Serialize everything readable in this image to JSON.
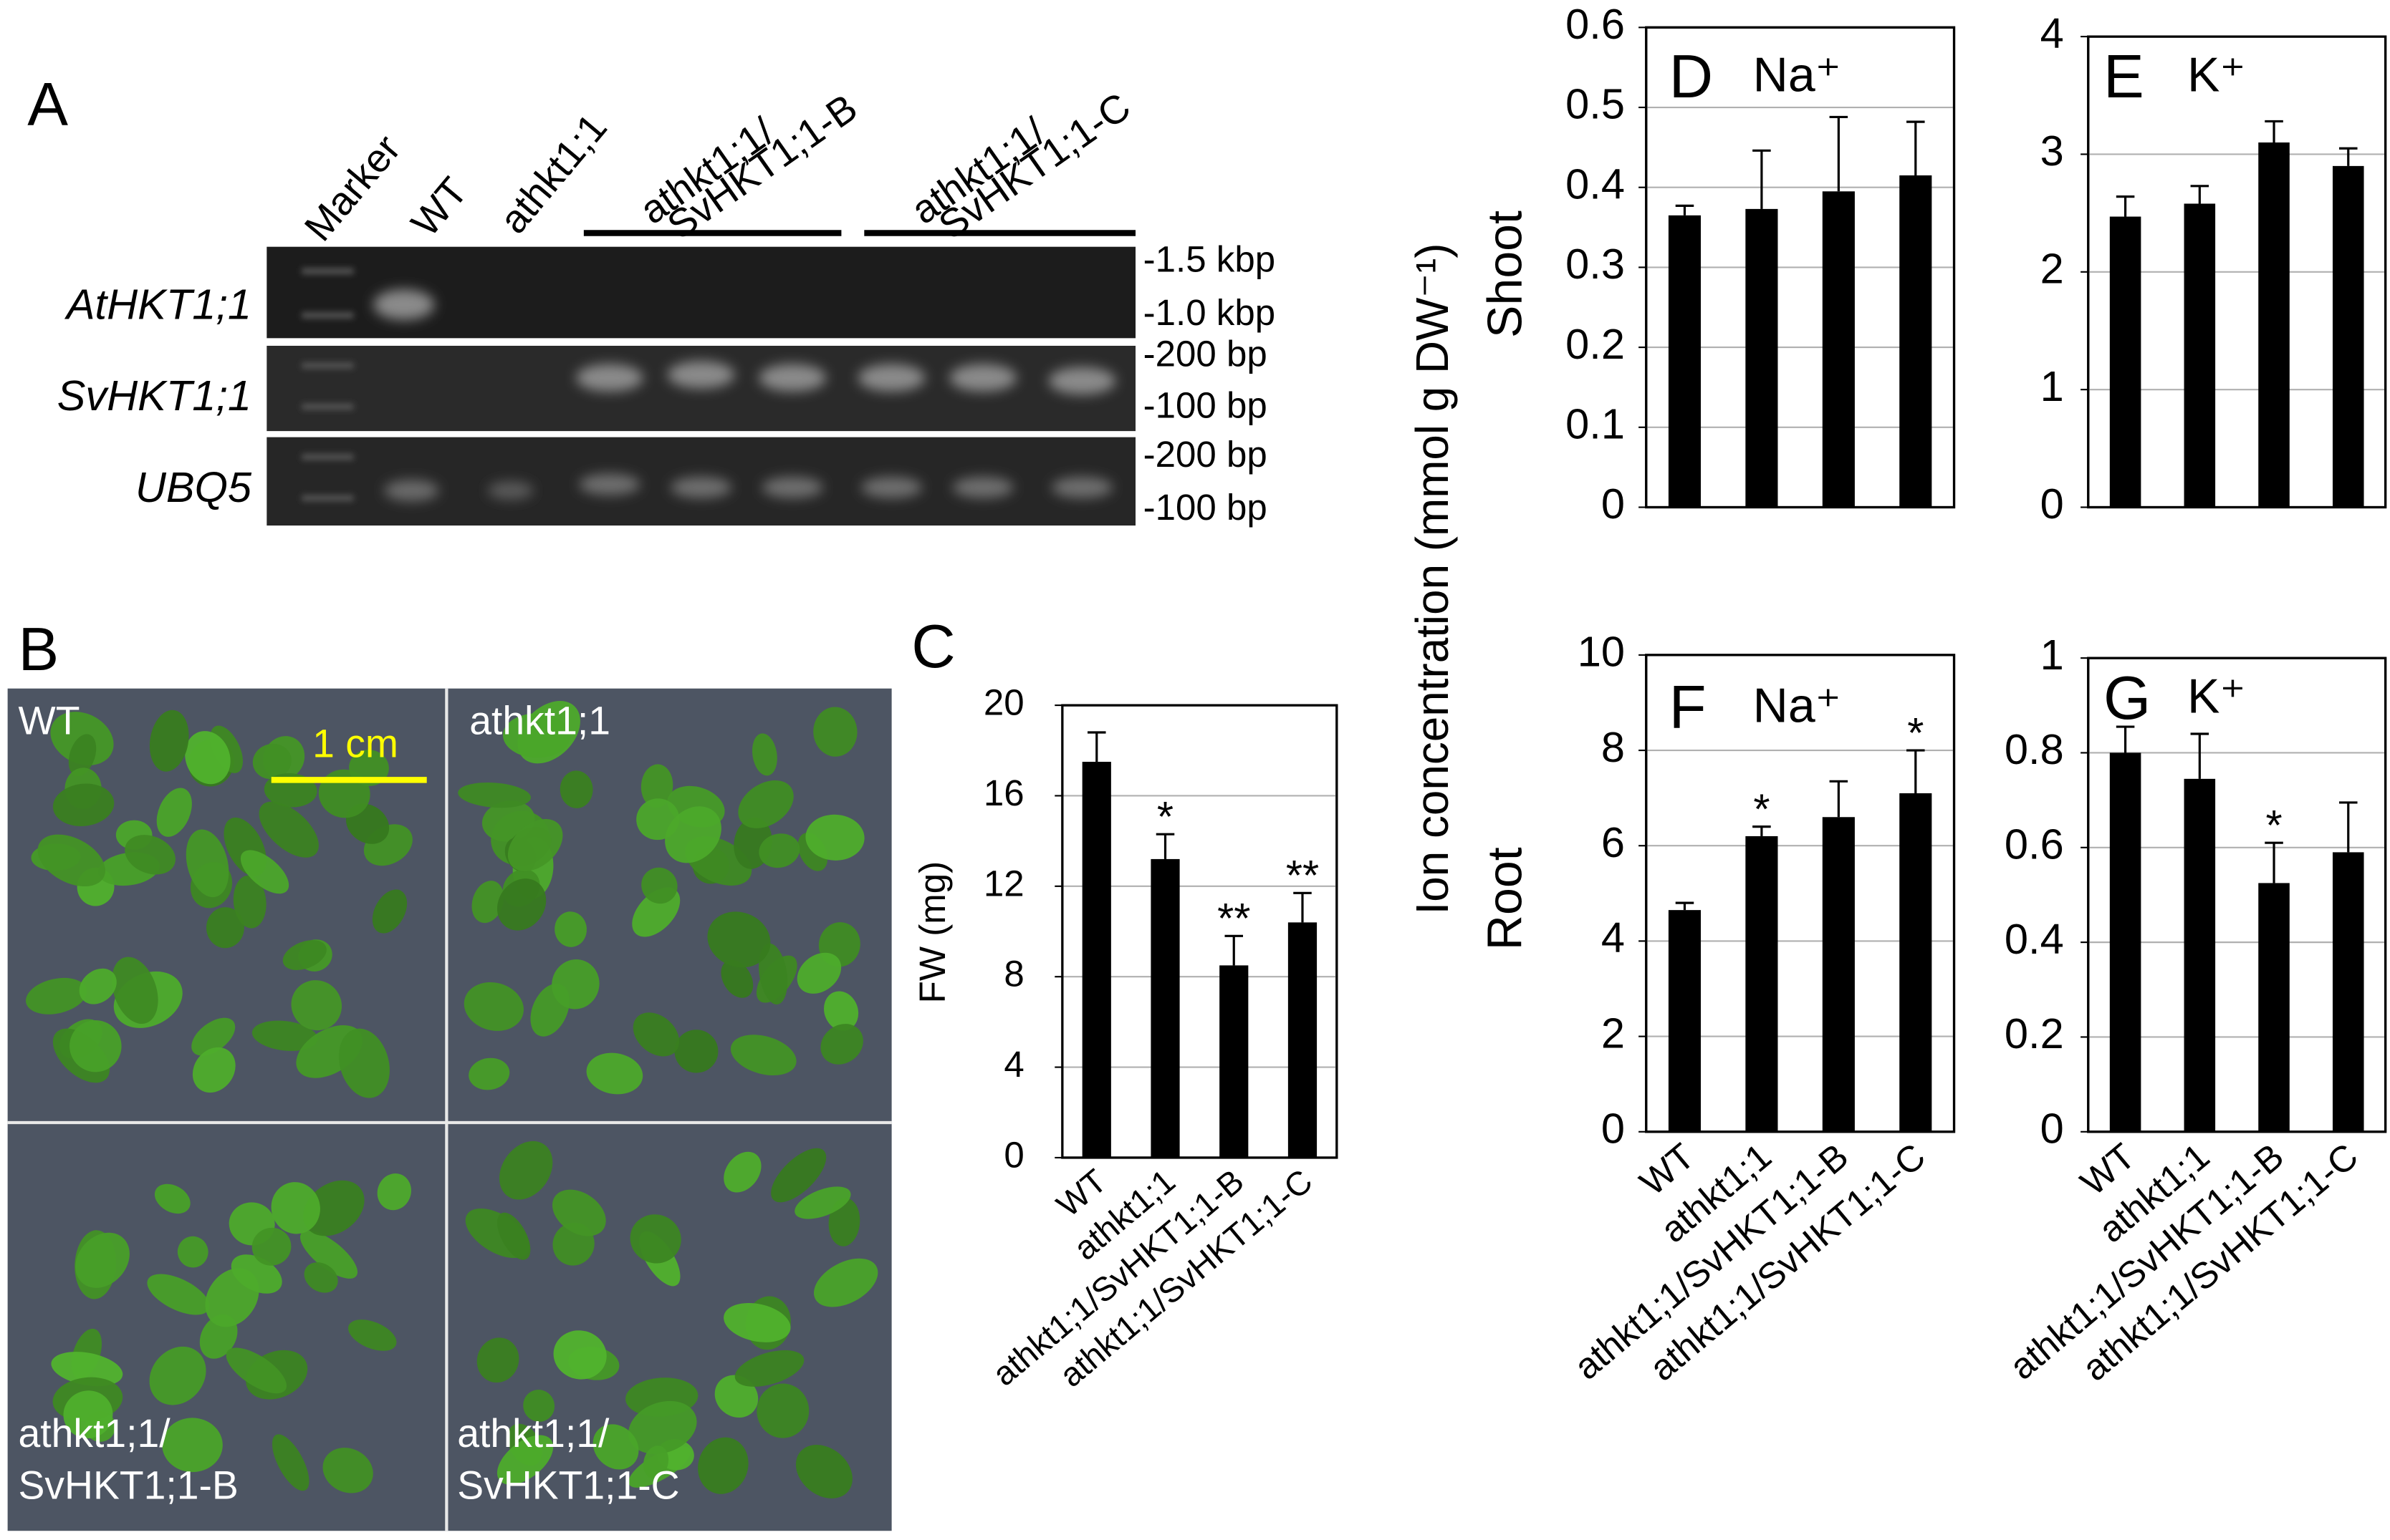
{
  "panel_a": {
    "letter": "A",
    "lanes": [
      [
        "Marker"
      ],
      [
        "WT"
      ],
      [
        "athkt1;1"
      ],
      [
        "athkt1;1/",
        "SvHKT1;1-B"
      ],
      [
        "athkt1;1/",
        "SvHKT1;1-C"
      ]
    ],
    "rows": [
      "AtHKT1;1",
      "SvHKT1;1",
      "UBQ5"
    ],
    "sizes": [
      "-1.5 kbp",
      "-1.0 kbp",
      "-200 bp",
      "-100 bp",
      "-200 bp",
      "-100 bp"
    ]
  },
  "panel_b": {
    "letter": "B",
    "scale_bar": "1 cm",
    "quadrants": [
      [
        "WT"
      ],
      [
        "athkt1;1"
      ],
      [
        "athkt1;1/",
        "SvHKT1;1-B"
      ],
      [
        "athkt1;1/",
        "SvHKT1;1-C"
      ]
    ]
  },
  "shared_y_label": "Ion concentration (mmol g DW⁻¹)",
  "chart_data": [
    {
      "type": "bar",
      "letter": "C",
      "y_label": "FW (mg)",
      "categories": [
        "WT",
        "athkt1;1",
        "athkt1;1/SvHKT1;1-B",
        "athkt1;1/SvHKT1;1-C"
      ],
      "values": [
        17.5,
        13.2,
        8.5,
        10.4
      ],
      "errors": [
        1.3,
        1.1,
        1.3,
        1.3
      ],
      "significance": [
        null,
        "*",
        "**",
        "**"
      ],
      "ylim": [
        0,
        20
      ],
      "yticks": [
        0,
        4,
        8,
        12,
        16,
        20
      ],
      "grid": true,
      "color": "#000000"
    },
    {
      "type": "bar",
      "letter": "D",
      "label": "Na⁺",
      "y_label": "Shoot",
      "values": [
        0.365,
        0.373,
        0.395,
        0.415
      ],
      "errors": [
        0.012,
        0.073,
        0.093,
        0.067
      ],
      "ylim": [
        0,
        0.6
      ],
      "yticks": [
        0,
        0.1,
        0.2,
        0.3,
        0.4,
        0.5,
        0.6
      ],
      "grid": true,
      "color": "#000000"
    },
    {
      "type": "bar",
      "letter": "E",
      "label": "K⁺",
      "values": [
        2.47,
        2.58,
        3.1,
        2.9
      ],
      "errors": [
        0.17,
        0.15,
        0.18,
        0.15
      ],
      "ylim": [
        0,
        4
      ],
      "yticks": [
        0,
        1,
        2,
        3,
        4
      ],
      "grid": true,
      "color": "#000000"
    },
    {
      "type": "bar",
      "letter": "F",
      "label": "Na⁺",
      "y_label": "Root",
      "categories": [
        "WT",
        "athkt1;1",
        "athkt1;1/SvHKT1;1-B",
        "athkt1;1/SvHKT1;1-C"
      ],
      "values": [
        4.65,
        6.2,
        6.6,
        7.1
      ],
      "errors": [
        0.15,
        0.2,
        0.75,
        0.9
      ],
      "significance": [
        null,
        "*",
        null,
        "*"
      ],
      "ylim": [
        0,
        10
      ],
      "yticks": [
        0,
        2,
        4,
        6,
        8,
        10
      ],
      "grid": true,
      "color": "#000000"
    },
    {
      "type": "bar",
      "letter": "G",
      "label": "K⁺",
      "categories": [
        "WT",
        "athkt1;1",
        "athkt1;1/SvHKT1;1-B",
        "athkt1;1/SvHKT1;1-C"
      ],
      "values": [
        0.8,
        0.745,
        0.525,
        0.59
      ],
      "errors": [
        0.055,
        0.095,
        0.085,
        0.105
      ],
      "significance": [
        null,
        null,
        "*",
        null
      ],
      "ylim": [
        0,
        1
      ],
      "yticks": [
        0,
        0.2,
        0.4,
        0.6,
        0.8,
        1
      ],
      "grid": true,
      "color": "#000000"
    }
  ]
}
